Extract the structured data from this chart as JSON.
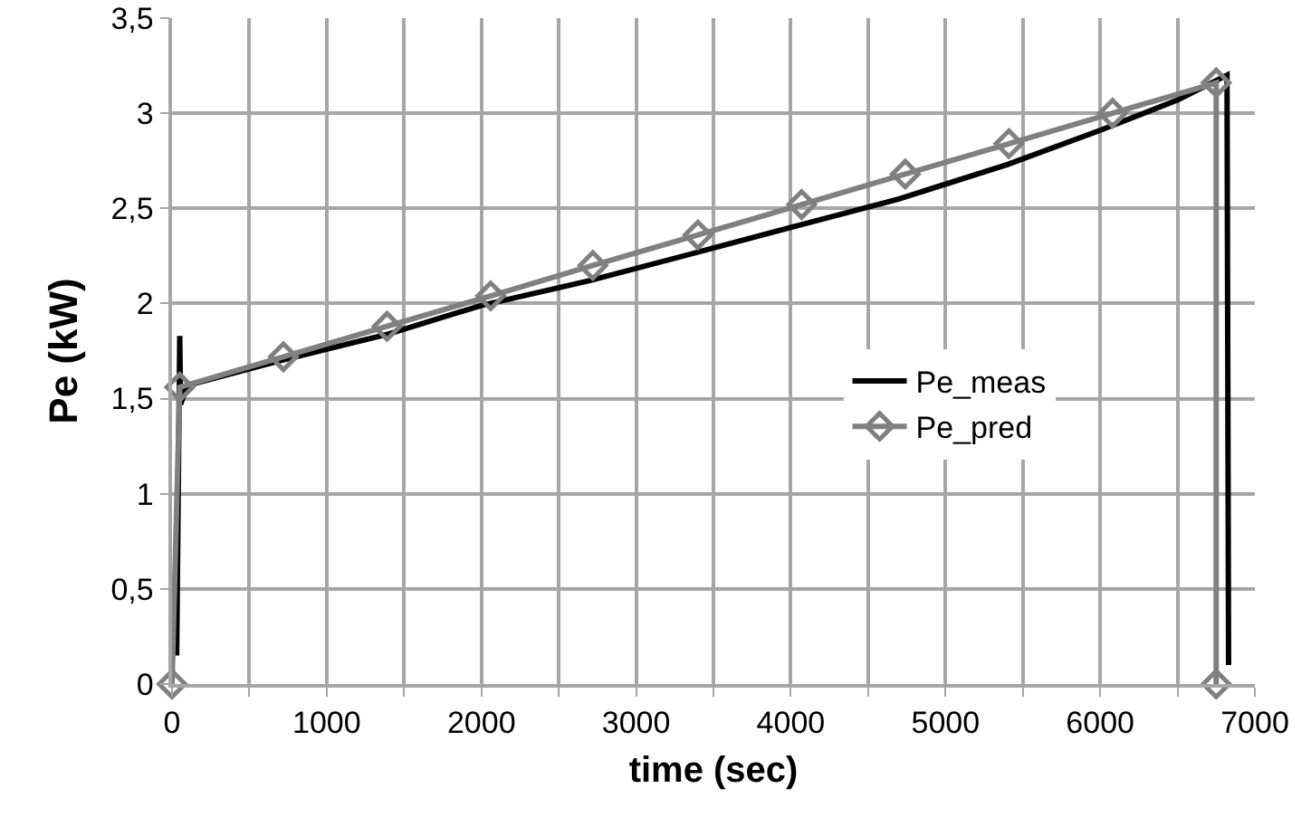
{
  "chart_data": {
    "type": "line",
    "xlabel": "time (sec)",
    "ylabel": "Pe (kW)",
    "xlim": [
      0,
      7000
    ],
    "xticks": [
      0,
      {
        "value": 500,
        "label": null
      },
      1000,
      {
        "value": 1500,
        "label": null
      },
      2000,
      {
        "value": 2500,
        "label": null
      },
      3000,
      {
        "value": 3500,
        "label": null
      },
      4000,
      {
        "value": 4500,
        "label": null
      },
      5000,
      {
        "value": 5500,
        "label": null
      },
      6000,
      {
        "value": 6500,
        "label": null
      },
      7000
    ],
    "ylim": [
      0,
      3.5
    ],
    "yticks": [
      0,
      {
        "value": 0.5,
        "label": "0,5"
      },
      1,
      {
        "value": 1.5,
        "label": "1,5"
      },
      2,
      {
        "value": 2.5,
        "label": "2,5"
      },
      3,
      {
        "value": 3.5,
        "label": "3,5"
      }
    ],
    "grid": true,
    "legend": "right",
    "line_style": "solid",
    "series": [
      {
        "name": "Pe_meas",
        "color": "#000000",
        "marker": "none",
        "x": [
          30,
          50,
          55,
          100,
          700,
          1400,
          2000,
          2700,
          3400,
          4000,
          4700,
          5400,
          6000,
          6500,
          6820,
          6830
        ],
        "values": [
          0.15,
          1.83,
          1.47,
          1.57,
          1.7,
          1.84,
          1.99,
          2.12,
          2.27,
          2.4,
          2.55,
          2.73,
          2.91,
          3.07,
          3.2,
          0.1
        ]
      },
      {
        "name": "Pe_pred",
        "color": "#808080",
        "marker": "diamond",
        "x": [
          0,
          50,
          720,
          1390,
          2060,
          2720,
          3400,
          4070,
          4740,
          5410,
          6080,
          6750,
          6750
        ],
        "values": [
          0,
          1.56,
          1.72,
          1.88,
          2.04,
          2.2,
          2.36,
          2.52,
          2.68,
          2.84,
          3.0,
          3.16,
          0
        ]
      }
    ]
  }
}
